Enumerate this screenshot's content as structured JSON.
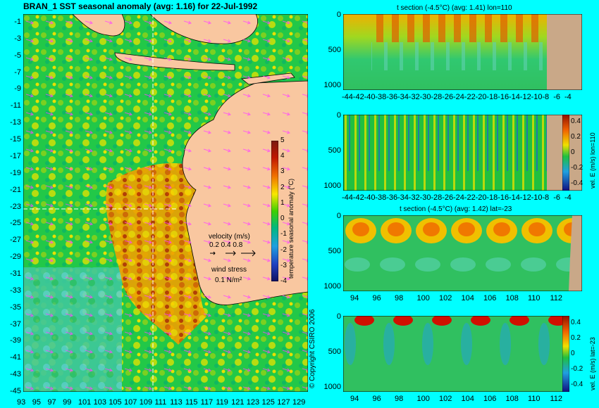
{
  "map": {
    "title": "BRAN_1  SST seasonal anomaly  (avg: 1.16)  for 22-Jul-1992",
    "lon_ticks": [
      "93",
      "95",
      "97",
      "99",
      "101",
      "103",
      "105",
      "107",
      "109",
      "111",
      "113",
      "115",
      "117",
      "119",
      "121",
      "123",
      "125",
      "127",
      "129"
    ],
    "lat_ticks": [
      "-1",
      "-3",
      "-5",
      "-7",
      "-9",
      "-11",
      "-13",
      "-15",
      "-17",
      "-19",
      "-21",
      "-23",
      "-25",
      "-27",
      "-29",
      "-31",
      "-33",
      "-35",
      "-37",
      "-39",
      "-41",
      "-43",
      "-45"
    ],
    "colorbar_ticks": [
      "5",
      "4",
      "3",
      "2",
      "1",
      "0",
      "-1",
      "-2",
      "-3",
      "-4"
    ],
    "colorbar_label": "temperature seasonal anomaly (°C)",
    "velocity_label": "velocity (m/s)",
    "velocity_scale": "0.2 0.4 0.8",
    "wind_label": "wind stress",
    "wind_scale": "0.1 N/m²",
    "copyright": "© Copyright CSIRO 2006",
    "colors": {
      "land": "#f9c7a0",
      "water_base": "#00c040",
      "warm": "#d02000",
      "cool": "#40c0c0",
      "arrows": "#ff44ff"
    }
  },
  "sections": [
    {
      "title": "t section (-4.5°C)  (avg: 1.41)  lon=110",
      "x_ticks": [
        "-44",
        "-42",
        "-40",
        "-38",
        "-36",
        "-34",
        "-32",
        "-30",
        "-28",
        "-26",
        "-24",
        "-22",
        "-20",
        "-18",
        "-16",
        "-14",
        "-12",
        "-10",
        "-8",
        "-6",
        "-4"
      ],
      "y_ticks": [
        "0",
        "500",
        "1000"
      ]
    },
    {
      "title": "",
      "x_ticks": [
        "-44",
        "-42",
        "-40",
        "-38",
        "-36",
        "-34",
        "-32",
        "-30",
        "-28",
        "-26",
        "-24",
        "-22",
        "-20",
        "-18",
        "-16",
        "-14",
        "-12",
        "-10",
        "-8",
        "-6",
        "-4"
      ],
      "y_ticks": [
        "0",
        "500",
        "1000"
      ],
      "colorbar_ticks": [
        "0.4",
        "0.2",
        "0",
        "-0.2",
        "-0.4"
      ],
      "colorbar_label": "vel. E (m/s) lon=110"
    },
    {
      "title": "t section (-4.5°C)  (avg: 1.42)  lat=-23",
      "x_ticks": [
        "94",
        "96",
        "98",
        "100",
        "102",
        "104",
        "106",
        "108",
        "110",
        "112"
      ],
      "y_ticks": [
        "0",
        "500",
        "1000"
      ]
    },
    {
      "title": "",
      "x_ticks": [
        "94",
        "96",
        "98",
        "100",
        "102",
        "104",
        "106",
        "108",
        "110",
        "112"
      ],
      "y_ticks": [
        "0",
        "500",
        "1000"
      ],
      "colorbar_ticks": [
        "0.4",
        "0.2",
        "0",
        "-0.2",
        "-0.4"
      ],
      "colorbar_label": "vel. E (m/s) lat=-23"
    }
  ],
  "chart_data": [
    {
      "type": "heatmap",
      "title": "BRAN_1  SST seasonal anomaly  (avg: 1.16)  for 22-Jul-1992",
      "xlim": [
        93,
        130
      ],
      "ylim": [
        -45,
        0
      ],
      "colorbar_range": [
        -4,
        5
      ],
      "avg": 1.16
    },
    {
      "type": "heatmap",
      "title": "t section (-4.5°C)  (avg: 1.41)  lon=110",
      "xlim": [
        -45,
        -3
      ],
      "ylim": [
        1050,
        0
      ],
      "avg": 1.41
    },
    {
      "type": "heatmap",
      "title": "",
      "xlim": [
        -45,
        -3
      ],
      "ylim": [
        1050,
        0
      ],
      "colorbar_range": [
        -0.5,
        0.5
      ]
    },
    {
      "type": "heatmap",
      "title": "t section (-4.5°C)  (avg: 1.42)  lat=-23",
      "xlim": [
        93,
        114
      ],
      "ylim": [
        1050,
        0
      ],
      "avg": 1.42
    },
    {
      "type": "heatmap",
      "title": "",
      "xlim": [
        93,
        114
      ],
      "ylim": [
        1050,
        0
      ],
      "colorbar_range": [
        -0.5,
        0.5
      ]
    }
  ]
}
